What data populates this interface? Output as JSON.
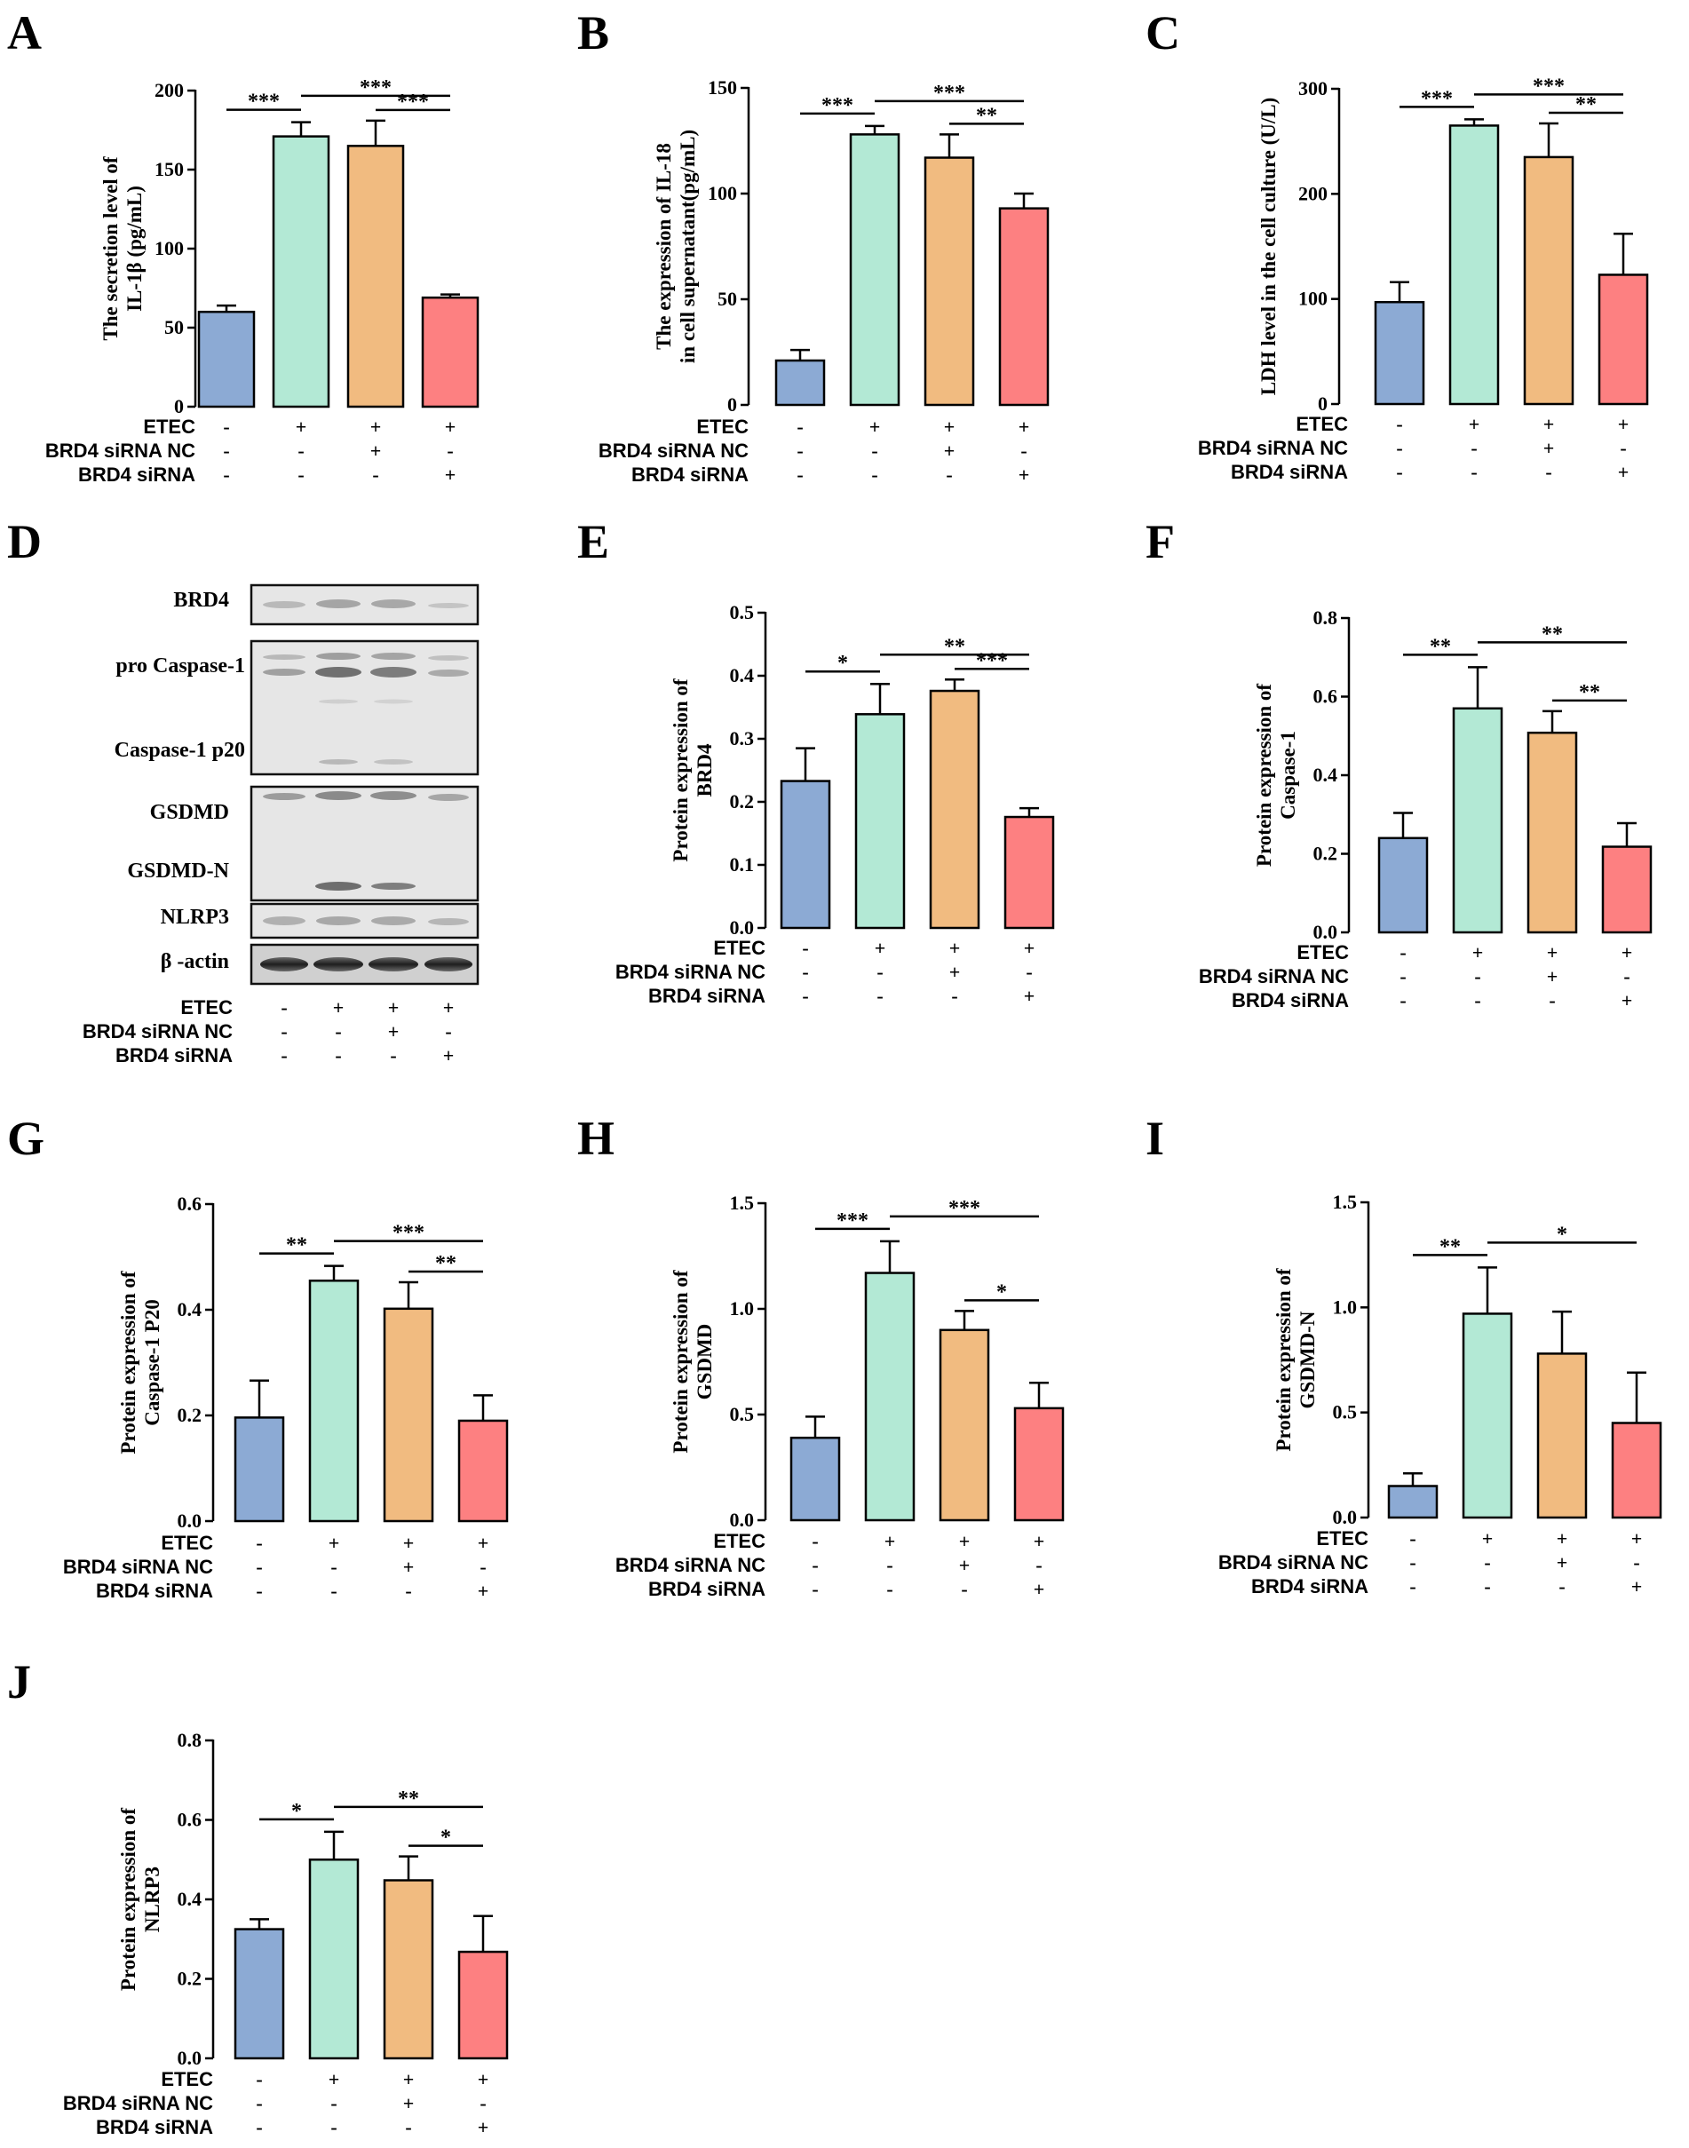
{
  "figure": {
    "colors": [
      "#8caad4",
      "#b3e9d5",
      "#f1bb80",
      "#fd8081"
    ],
    "condition_rows": [
      "ETEC",
      "BRD4 siRNA NC",
      "BRD4 siRNA"
    ],
    "condition_signs": [
      [
        "-",
        "+",
        "+",
        "+"
      ],
      [
        "-",
        "-",
        "+",
        "-"
      ],
      [
        "-",
        "-",
        "-",
        "+"
      ]
    ]
  },
  "chart_data": [
    {
      "id": "A",
      "panel_label": "A",
      "type": "bar",
      "ylabel": [
        "The secretion level of",
        "IL-1β (pg/mL)"
      ],
      "ylim": [
        0,
        200
      ],
      "ticks": [
        0,
        50,
        100,
        150,
        200
      ],
      "tick_labels": [
        "0",
        "50",
        "100",
        "150",
        "200"
      ],
      "values": [
        60,
        171,
        165,
        69
      ],
      "errors": [
        4,
        9,
        16,
        2
      ],
      "sig": [
        {
          "from": 0,
          "to": 1,
          "label": "***"
        },
        {
          "from": 1,
          "to": 3,
          "label": "***"
        },
        {
          "from": 2,
          "to": 3,
          "label": "***"
        }
      ]
    },
    {
      "id": "B",
      "panel_label": "B",
      "type": "bar",
      "ylabel": [
        "The expression of IL-18",
        "in cell supernatant(pg/mL)"
      ],
      "ylim": [
        0,
        150
      ],
      "ticks": [
        0,
        50,
        100,
        150
      ],
      "tick_labels": [
        "0",
        "50",
        "100",
        "150"
      ],
      "values": [
        21,
        128,
        117,
        93
      ],
      "errors": [
        5,
        4,
        11,
        7
      ],
      "sig": [
        {
          "from": 0,
          "to": 1,
          "label": "***"
        },
        {
          "from": 1,
          "to": 3,
          "label": "***"
        },
        {
          "from": 2,
          "to": 3,
          "label": "**"
        }
      ]
    },
    {
      "id": "C",
      "panel_label": "C",
      "type": "bar",
      "ylabel": [
        "LDH level in the cell culture (U/L)"
      ],
      "ylim": [
        0,
        300
      ],
      "ticks": [
        0,
        100,
        200,
        300
      ],
      "tick_labels": [
        "0",
        "100",
        "200",
        "300"
      ],
      "values": [
        97,
        265,
        235,
        123
      ],
      "errors": [
        19,
        6,
        32,
        39
      ],
      "sig": [
        {
          "from": 0,
          "to": 1,
          "label": "***"
        },
        {
          "from": 1,
          "to": 3,
          "label": "***"
        },
        {
          "from": 2,
          "to": 3,
          "label": "**"
        }
      ]
    },
    {
      "id": "E",
      "panel_label": "E",
      "type": "bar",
      "ylabel": [
        "Protein expression of",
        "BRD4"
      ],
      "ylim": [
        0,
        0.5
      ],
      "ticks": [
        0,
        0.1,
        0.2,
        0.3,
        0.4,
        0.5
      ],
      "tick_labels": [
        "0.0",
        "0.1",
        "0.2",
        "0.3",
        "0.4",
        "0.5"
      ],
      "values": [
        0.233,
        0.339,
        0.376,
        0.176
      ],
      "errors": [
        0.052,
        0.048,
        0.018,
        0.014
      ],
      "sig": [
        {
          "from": 0,
          "to": 1,
          "label": "*"
        },
        {
          "from": 1,
          "to": 3,
          "label": "**"
        },
        {
          "from": 2,
          "to": 3,
          "label": "***"
        }
      ]
    },
    {
      "id": "F",
      "panel_label": "F",
      "type": "bar",
      "ylabel": [
        "Protein expression of",
        "Caspase-1"
      ],
      "ylim": [
        0,
        0.8
      ],
      "ticks": [
        0,
        0.2,
        0.4,
        0.6,
        0.8
      ],
      "tick_labels": [
        "0.0",
        "0.2",
        "0.4",
        "0.6",
        "0.8"
      ],
      "values": [
        0.24,
        0.57,
        0.508,
        0.218
      ],
      "errors": [
        0.064,
        0.105,
        0.055,
        0.06
      ],
      "sig": [
        {
          "from": 0,
          "to": 1,
          "label": "**"
        },
        {
          "from": 1,
          "to": 3,
          "label": "**"
        },
        {
          "from": 2,
          "to": 3,
          "label": "**"
        }
      ]
    },
    {
      "id": "G",
      "panel_label": "G",
      "type": "bar",
      "ylabel": [
        "Protein expression of",
        "Caspase-1 P20"
      ],
      "ylim": [
        0,
        0.6
      ],
      "ticks": [
        0,
        0.2,
        0.4,
        0.6
      ],
      "tick_labels": [
        "0.0",
        "0.2",
        "0.4",
        "0.6"
      ],
      "values": [
        0.196,
        0.455,
        0.402,
        0.19
      ],
      "errors": [
        0.07,
        0.028,
        0.05,
        0.048
      ],
      "sig": [
        {
          "from": 0,
          "to": 1,
          "label": "**"
        },
        {
          "from": 1,
          "to": 3,
          "label": "***"
        },
        {
          "from": 2,
          "to": 3,
          "label": "**"
        }
      ]
    },
    {
      "id": "H",
      "panel_label": "H",
      "type": "bar",
      "ylabel": [
        "Protein expression of",
        "GSDMD"
      ],
      "ylim": [
        0,
        1.5
      ],
      "ticks": [
        0,
        0.5,
        1.0,
        1.5
      ],
      "tick_labels": [
        "0.0",
        "0.5",
        "1.0",
        "1.5"
      ],
      "values": [
        0.39,
        1.17,
        0.9,
        0.53
      ],
      "errors": [
        0.1,
        0.15,
        0.09,
        0.12
      ],
      "sig": [
        {
          "from": 0,
          "to": 1,
          "label": "***"
        },
        {
          "from": 1,
          "to": 3,
          "label": "***"
        },
        {
          "from": 2,
          "to": 3,
          "label": "*"
        }
      ]
    },
    {
      "id": "I",
      "panel_label": "I",
      "type": "bar",
      "ylabel": [
        "Protein expression of",
        "GSDMD-N"
      ],
      "ylim": [
        0,
        1.5
      ],
      "ticks": [
        0,
        0.5,
        1.0,
        1.5
      ],
      "tick_labels": [
        "0.0",
        "0.5",
        "1.0",
        "1.5"
      ],
      "values": [
        0.15,
        0.97,
        0.78,
        0.45
      ],
      "errors": [
        0.06,
        0.22,
        0.2,
        0.24
      ],
      "sig": [
        {
          "from": 0,
          "to": 1,
          "label": "**"
        },
        {
          "from": 1,
          "to": 3,
          "label": "*"
        }
      ]
    },
    {
      "id": "J",
      "panel_label": "J",
      "type": "bar",
      "ylabel": [
        "Protein expression of",
        "NLRP3"
      ],
      "ylim": [
        0,
        0.8
      ],
      "ticks": [
        0,
        0.2,
        0.4,
        0.6,
        0.8
      ],
      "tick_labels": [
        "0.0",
        "0.2",
        "0.4",
        "0.6",
        "0.8"
      ],
      "values": [
        0.325,
        0.5,
        0.448,
        0.268
      ],
      "errors": [
        0.025,
        0.07,
        0.06,
        0.09
      ],
      "sig": [
        {
          "from": 0,
          "to": 1,
          "label": "*"
        },
        {
          "from": 1,
          "to": 3,
          "label": "**"
        },
        {
          "from": 2,
          "to": 3,
          "label": "*"
        }
      ]
    }
  ],
  "western_blot": {
    "panel_label": "D",
    "bands": [
      "BRD4",
      "pro Caspase-1",
      "Caspase-1 p20",
      "GSDMD",
      "GSDMD-N",
      "NLRP3",
      "β -actin"
    ]
  }
}
